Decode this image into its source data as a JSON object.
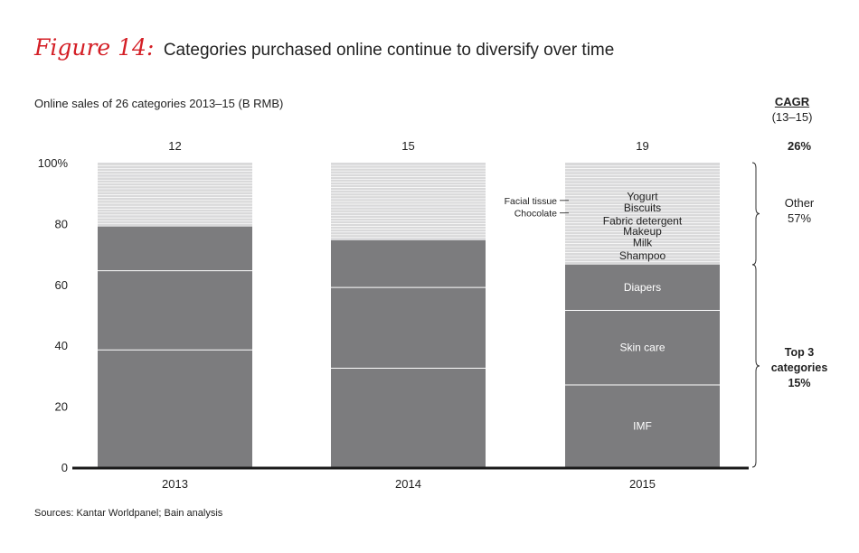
{
  "figure": {
    "label": "Figure 14:",
    "title": "Categories purchased online continue to diversify over time",
    "source": "Sources: Kantar Worldpanel; Bain analysis"
  },
  "cagr_header": {
    "title": "CAGR",
    "period": "(13–15)"
  },
  "colors": {
    "dark_segment": "#7c7c7e",
    "light_segment": "#d9d9da",
    "separator": "#ffffff",
    "axis": "#1a1a1a",
    "accent": "#d41f26"
  },
  "chart_data": {
    "type": "bar",
    "stacked": true,
    "title": "Online sales of 26 categories 2013–15 (B RMB)",
    "categories": [
      "2013",
      "2014",
      "2015"
    ],
    "totals": [
      12,
      15,
      19
    ],
    "ylim": [
      0,
      100
    ],
    "yticks": [
      0,
      20,
      40,
      60,
      80
    ],
    "ytick_top_label": "100%",
    "bars": [
      {
        "year": "2013",
        "dark_splits": [
          0,
          38.5,
          64.5,
          79
        ],
        "light_lines": 22
      },
      {
        "year": "2014",
        "dark_splits": [
          0,
          32.5,
          59,
          74.5
        ],
        "light_lines": 28
      },
      {
        "year": "2015",
        "dark_splits": [
          0,
          27,
          51.5,
          66.5
        ],
        "light_lines": 34
      }
    ],
    "segments_2015": [
      {
        "label": "IMF",
        "from": 0,
        "to": 27
      },
      {
        "label": "Skin care",
        "from": 27,
        "to": 51.5
      },
      {
        "label": "Diapers",
        "from": 51.5,
        "to": 66.5
      }
    ],
    "other_labels_2015": [
      {
        "label": "Shampoo",
        "y": 69.5
      },
      {
        "label": "Milk",
        "y": 73.8
      },
      {
        "label": "Makeup",
        "y": 77.5
      },
      {
        "label": "Fabric detergent",
        "y": 80.8
      },
      {
        "label": "Biscuits",
        "y": 85.2
      },
      {
        "label": "Yogurt",
        "y": 88.8
      }
    ],
    "callouts_2015": [
      {
        "label": "Facial tissue",
        "y": 87.6
      },
      {
        "label": "Chocolate",
        "y": 83.5
      }
    ],
    "cagr": {
      "total": "26%",
      "other": {
        "label": "Other",
        "value": "57%"
      },
      "top3": {
        "lines": [
          "Top 3",
          "categories"
        ],
        "value": "15%"
      }
    }
  }
}
